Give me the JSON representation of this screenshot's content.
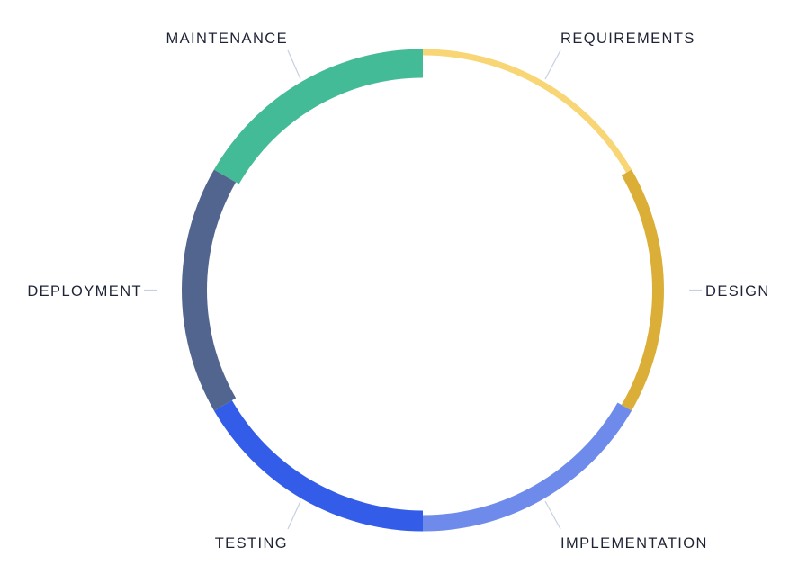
{
  "diagram": {
    "type": "cycle",
    "stages": [
      {
        "label": "REQUIREMENTS",
        "color": "#f8d675"
      },
      {
        "label": "DESIGN",
        "color": "#dbaf37"
      },
      {
        "label": "IMPLEMENTATION",
        "color": "#6e8beb"
      },
      {
        "label": "TESTING",
        "color": "#335de8"
      },
      {
        "label": "DEPLOYMENT",
        "color": "#52658f"
      },
      {
        "label": "MAINTENANCE",
        "color": "#43bb96"
      }
    ]
  }
}
